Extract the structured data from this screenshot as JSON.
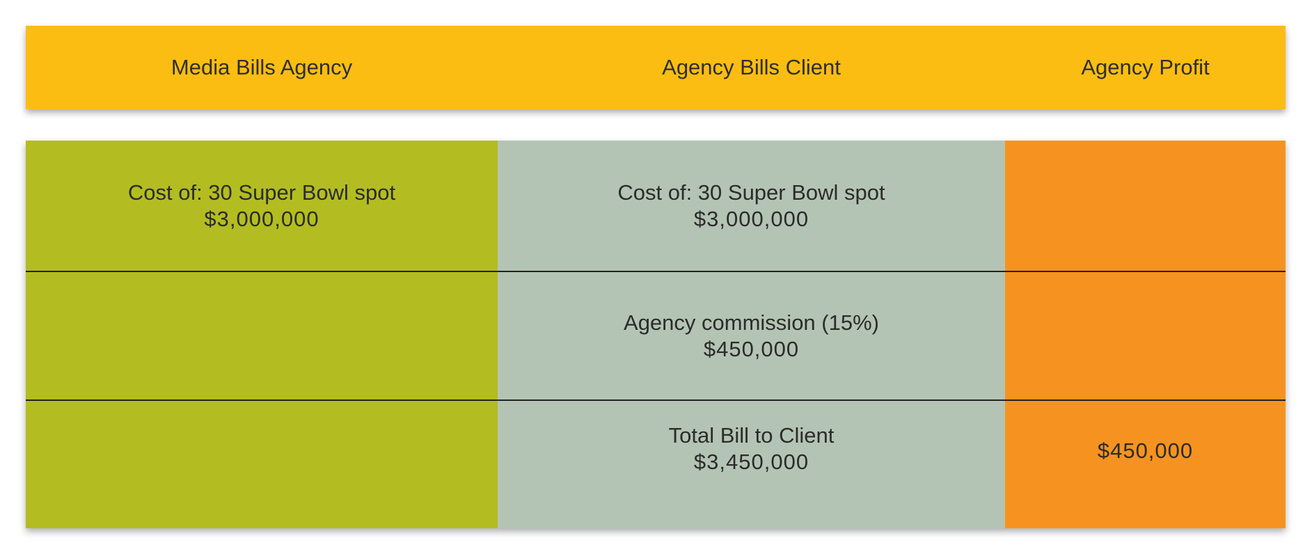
{
  "header": {
    "col1": "Media Bills Agency",
    "col2": "Agency Bills Client",
    "col3": "Agency Profit"
  },
  "rows": [
    {
      "media": {
        "label": "Cost of: 30 Super Bowl spot",
        "amount": "$3,000,000"
      },
      "client": {
        "label": "Cost of: 30 Super Bowl spot",
        "amount": "$3,000,000"
      },
      "profit": {
        "amount": ""
      }
    },
    {
      "media": {
        "label": "",
        "amount": ""
      },
      "client": {
        "label": "Agency commission (15%)",
        "amount": "$450,000"
      },
      "profit": {
        "amount": ""
      }
    },
    {
      "media": {
        "label": "",
        "amount": ""
      },
      "client": {
        "label": "Total Bill to Client",
        "amount": "$3,450,000"
      },
      "profit": {
        "amount": "$450,000"
      }
    }
  ],
  "colors": {
    "header": "#fcbd12",
    "media_column": "#b3bd21",
    "client_column": "#b4c4b4",
    "profit_column": "#f69320",
    "divider": "#222222"
  }
}
